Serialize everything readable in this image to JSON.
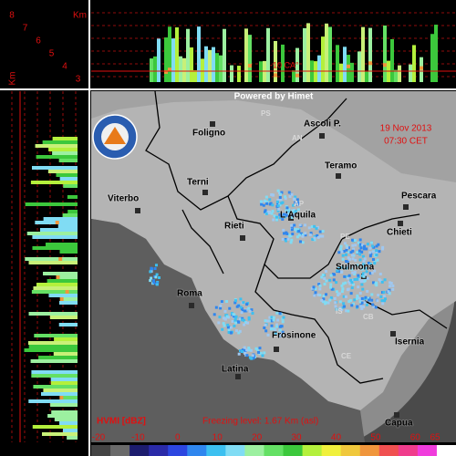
{
  "profile_top": {
    "altitude_labels": [
      "8",
      "7",
      "6",
      "5",
      "4",
      "3"
    ],
    "unit": "Km",
    "freezing_label": "-10 CA°"
  },
  "profile_left": {
    "unit": "Km"
  },
  "map": {
    "credit": "Powered by Himet",
    "date": "19 Nov 2013",
    "time": "07:30 CET",
    "cities": [
      "Foligno",
      "Ascoli P.",
      "Teramo",
      "Terni",
      "Viterbo",
      "Pescara",
      "L'Aquila",
      "Rieti",
      "Chieti",
      "Sulmona",
      "Roma",
      "Frosinone",
      "Isernia",
      "Latina",
      "Capua"
    ],
    "provinces": [
      "PS",
      "AN",
      "AP",
      "PE",
      "IS",
      "CB",
      "CE"
    ]
  },
  "legend": {
    "product": "HVMI [dBZ]",
    "freezing_level": "Freezing level: 1.67 Km (asl)",
    "ticks": [
      -20,
      -10,
      0,
      10,
      20,
      30,
      40,
      50,
      60,
      65
    ],
    "colors": [
      "#444444",
      "#6a6a6a",
      "#1c1c6e",
      "#2a2aa8",
      "#2c46e0",
      "#2f86ee",
      "#3cc0f0",
      "#80dcf4",
      "#9cf0a0",
      "#64e064",
      "#3cc83c",
      "#b4f03c",
      "#f0f03c",
      "#f0c83c",
      "#f0963c",
      "#f05050",
      "#f03c8c",
      "#f03cdc",
      "#ffffff"
    ]
  }
}
